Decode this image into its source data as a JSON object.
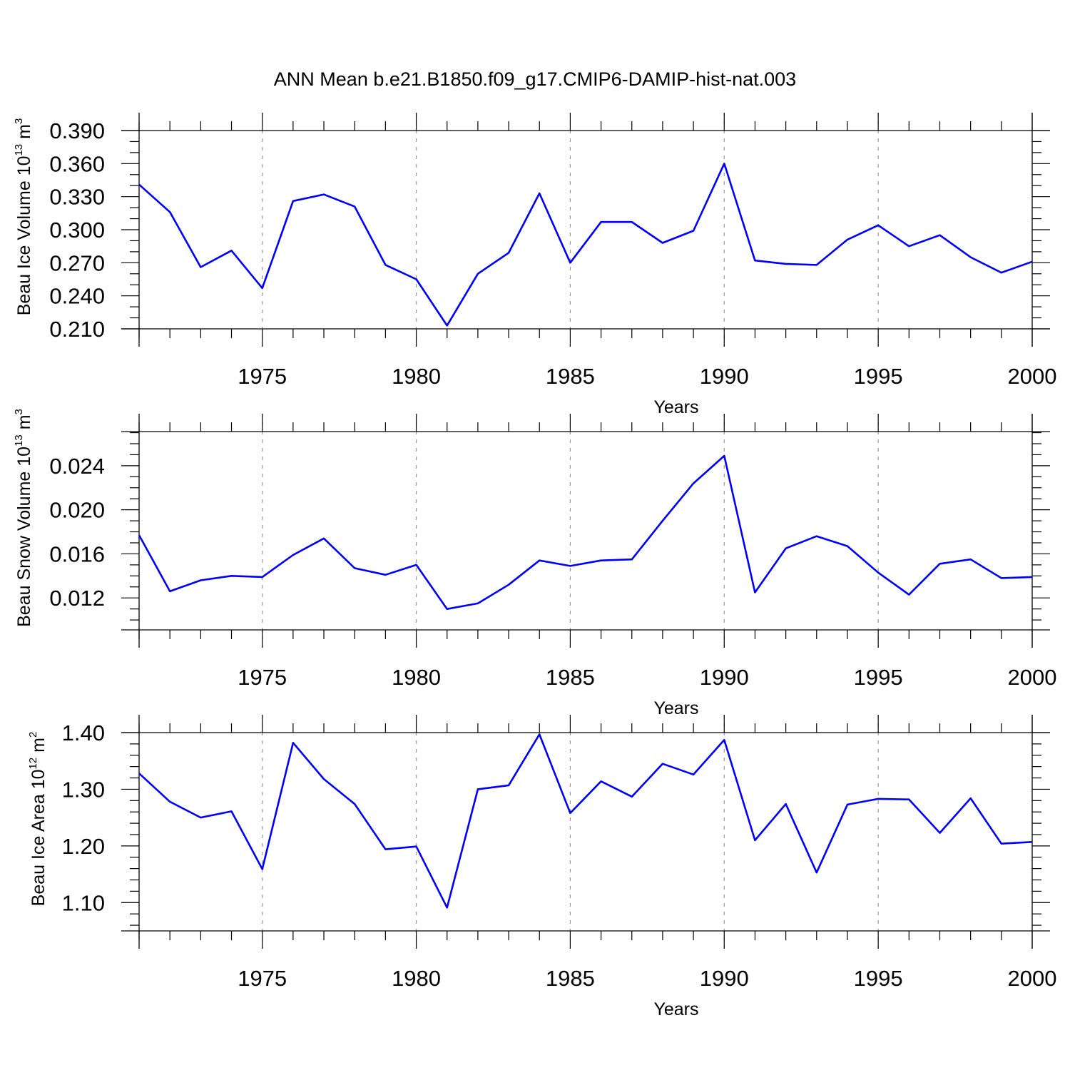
{
  "title": "ANN Mean b.e21.B1850.f09_g17.CMIP6-DAMIP-hist-nat.003",
  "colors": {
    "series": "#0000ff",
    "axes": "#000000",
    "grid": "#999999"
  },
  "chart_data": [
    {
      "type": "line",
      "ylabel": {
        "text": "Beau Ice Volume 10",
        "exp": "13",
        "unit": " m",
        "unit_exp": "3"
      },
      "xlabel": "Years",
      "xlim": [
        1971,
        2000
      ],
      "ylim": [
        0.21,
        0.39
      ],
      "yticks": [
        0.21,
        0.24,
        0.27,
        0.3,
        0.33,
        0.36,
        0.39
      ],
      "yticklabels": [
        "0.210",
        "0.240",
        "0.270",
        "0.300",
        "0.330",
        "0.360",
        "0.390"
      ],
      "yminor": 0.01,
      "xticks": [
        1975,
        1980,
        1985,
        1990,
        1995,
        2000
      ],
      "xticklabels": [
        "1975",
        "1980",
        "1985",
        "1990",
        "1995",
        "2000"
      ],
      "grid_x": true,
      "x": [
        1971,
        1972,
        1973,
        1974,
        1975,
        1976,
        1977,
        1978,
        1979,
        1980,
        1981,
        1982,
        1983,
        1984,
        1985,
        1986,
        1987,
        1988,
        1989,
        1990,
        1991,
        1992,
        1993,
        1994,
        1995,
        1996,
        1997,
        1998,
        1999,
        2000
      ],
      "y": [
        0.341,
        0.316,
        0.266,
        0.281,
        0.247,
        0.326,
        0.332,
        0.321,
        0.268,
        0.255,
        0.213,
        0.26,
        0.279,
        0.333,
        0.27,
        0.307,
        0.307,
        0.288,
        0.299,
        0.36,
        0.272,
        0.269,
        0.268,
        0.291,
        0.304,
        0.285,
        0.295,
        0.275,
        0.261,
        0.271
      ]
    },
    {
      "type": "line",
      "ylabel": {
        "text": "Beau Snow Volume 10",
        "exp": "13",
        "unit": " m",
        "unit_exp": "3"
      },
      "xlabel": "Years",
      "xlim": [
        1971,
        2000
      ],
      "ylim": [
        0.0091,
        0.0271
      ],
      "yticks": [
        0.012,
        0.016,
        0.02,
        0.024
      ],
      "yticklabels": [
        "0.012",
        "0.016",
        "0.020",
        "0.024"
      ],
      "yminor": 0.001,
      "xticks": [
        1975,
        1980,
        1985,
        1990,
        1995,
        2000
      ],
      "xticklabels": [
        "1975",
        "1980",
        "1985",
        "1990",
        "1995",
        "2000"
      ],
      "grid_x": true,
      "x": [
        1971,
        1972,
        1973,
        1974,
        1975,
        1976,
        1977,
        1978,
        1979,
        1980,
        1981,
        1982,
        1983,
        1984,
        1985,
        1986,
        1987,
        1988,
        1989,
        1990,
        1991,
        1992,
        1993,
        1994,
        1995,
        1996,
        1997,
        1998,
        1999,
        2000
      ],
      "y": [
        0.0177,
        0.0126,
        0.0136,
        0.014,
        0.0139,
        0.0159,
        0.0174,
        0.0147,
        0.0141,
        0.015,
        0.011,
        0.0115,
        0.0132,
        0.0154,
        0.0149,
        0.0154,
        0.0155,
        0.019,
        0.0224,
        0.0249,
        0.0125,
        0.0165,
        0.0176,
        0.0167,
        0.0143,
        0.0123,
        0.0151,
        0.0155,
        0.0138,
        0.0139
      ]
    },
    {
      "type": "line",
      "ylabel": {
        "text": "Beau Ice Area 10",
        "exp": "12",
        "unit": " m",
        "unit_exp": "2"
      },
      "xlabel": "Years",
      "xlim": [
        1971,
        2000
      ],
      "ylim": [
        1.05,
        1.4
      ],
      "yticks": [
        1.1,
        1.2,
        1.3,
        1.4
      ],
      "yticklabels": [
        "1.10",
        "1.20",
        "1.30",
        "1.40"
      ],
      "yminor": 0.02,
      "xticks": [
        1975,
        1980,
        1985,
        1990,
        1995,
        2000
      ],
      "xticklabels": [
        "1975",
        "1980",
        "1985",
        "1990",
        "1995",
        "2000"
      ],
      "grid_x": true,
      "x": [
        1971,
        1972,
        1973,
        1974,
        1975,
        1976,
        1977,
        1978,
        1979,
        1980,
        1981,
        1982,
        1983,
        1984,
        1985,
        1986,
        1987,
        1988,
        1989,
        1990,
        1991,
        1992,
        1993,
        1994,
        1995,
        1996,
        1997,
        1998,
        1999,
        2000
      ],
      "y": [
        1.328,
        1.278,
        1.25,
        1.261,
        1.159,
        1.382,
        1.318,
        1.274,
        1.194,
        1.199,
        1.091,
        1.3,
        1.307,
        1.397,
        1.258,
        1.314,
        1.287,
        1.345,
        1.326,
        1.387,
        1.21,
        1.274,
        1.153,
        1.273,
        1.283,
        1.282,
        1.223,
        1.284,
        1.204,
        1.207
      ]
    }
  ]
}
